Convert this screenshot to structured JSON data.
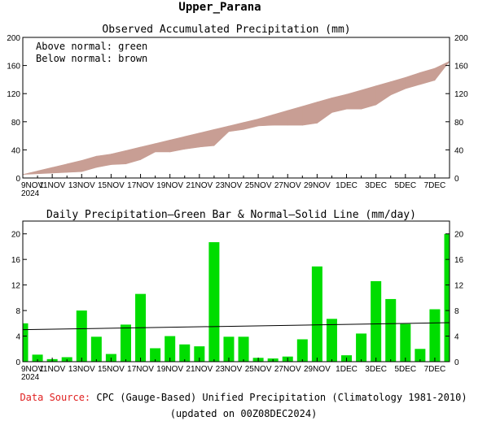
{
  "page_title": "Upper_Parana",
  "chart_data": [
    {
      "type": "area",
      "title": "Observed Accumulated Precipitation (mm)",
      "legend": [
        "Above normal: green",
        "Below normal: brown"
      ],
      "legend_placement": "top-left",
      "ylim": [
        0,
        200
      ],
      "yticks": [
        0,
        40,
        80,
        120,
        160,
        200
      ],
      "right_axis_ticks": true,
      "x_tick_labels": [
        "9NOV\n2024",
        "11NOV",
        "13NOV",
        "15NOV",
        "17NOV",
        "19NOV",
        "21NOV",
        "23NOV",
        "25NOV",
        "27NOV",
        "29NOV",
        "1DEC",
        "3DEC",
        "5DEC",
        "7DEC"
      ],
      "days": [
        "9NOV",
        "10NOV",
        "11NOV",
        "12NOV",
        "13NOV",
        "14NOV",
        "15NOV",
        "16NOV",
        "17NOV",
        "18NOV",
        "19NOV",
        "20NOV",
        "21NOV",
        "22NOV",
        "23NOV",
        "24NOV",
        "25NOV",
        "26NOV",
        "27NOV",
        "28NOV",
        "29NOV",
        "30NOV",
        "1DEC",
        "2DEC",
        "3DEC",
        "4DEC",
        "5DEC",
        "6DEC",
        "7DEC",
        "8DEC"
      ],
      "series": [
        {
          "name": "observed",
          "values": [
            5,
            6,
            7,
            8,
            9,
            15,
            19,
            20,
            26,
            37,
            37,
            41,
            44,
            46,
            66,
            69,
            74,
            75,
            75,
            75,
            78,
            93,
            98,
            98,
            104,
            118,
            127,
            133,
            139,
            166
          ]
        },
        {
          "name": "normal",
          "values": [
            5,
            10,
            15,
            20,
            25,
            31,
            34,
            39,
            44,
            49,
            54,
            59,
            64,
            69,
            74,
            79,
            84,
            90,
            96,
            102,
            108,
            114,
            119,
            125,
            131,
            137,
            143,
            150,
            156,
            166
          ]
        }
      ],
      "colors": {
        "above": "#00cc00",
        "below": "#c89e94"
      }
    },
    {
      "type": "bar",
      "title": "Daily Precipitation—Green Bar & Normal—Solid Line (mm/day)",
      "ylim": [
        0,
        22
      ],
      "yticks": [
        0,
        4,
        8,
        12,
        16,
        20
      ],
      "right_axis_ticks": true,
      "x_tick_labels": [
        "9NOV\n2024",
        "11NOV",
        "13NOV",
        "15NOV",
        "17NOV",
        "19NOV",
        "21NOV",
        "23NOV",
        "25NOV",
        "27NOV",
        "29NOV",
        "1DEC",
        "3DEC",
        "5DEC",
        "7DEC"
      ],
      "categories": [
        "9NOV",
        "10NOV",
        "11NOV",
        "12NOV",
        "13NOV",
        "14NOV",
        "15NOV",
        "16NOV",
        "17NOV",
        "18NOV",
        "19NOV",
        "20NOV",
        "21NOV",
        "22NOV",
        "23NOV",
        "24NOV",
        "25NOV",
        "26NOV",
        "27NOV",
        "28NOV",
        "29NOV",
        "30NOV",
        "1DEC",
        "2DEC",
        "3DEC",
        "4DEC",
        "5DEC",
        "6DEC",
        "7DEC",
        "8DEC"
      ],
      "values": [
        6,
        1.1,
        0.4,
        0.7,
        8,
        3.9,
        1.2,
        5.8,
        10.6,
        2.1,
        4,
        2.7,
        2.4,
        18.7,
        3.9,
        3.9,
        0.6,
        0.5,
        0.8,
        3.5,
        14.9,
        6.7,
        1,
        4.4,
        12.6,
        9.8,
        5.9,
        2,
        8.2,
        20
      ],
      "normal_line": [
        5,
        6.1
      ],
      "colors": {
        "bar": "#00dd00",
        "line": "#000000"
      }
    }
  ],
  "footer": {
    "source_label": "Data Source:",
    "source_text": "CPC (Gauge-Based) Unified Precipitation (Climatology 1981-2010)",
    "updated": "(updated on 00Z08DEC2024)"
  }
}
